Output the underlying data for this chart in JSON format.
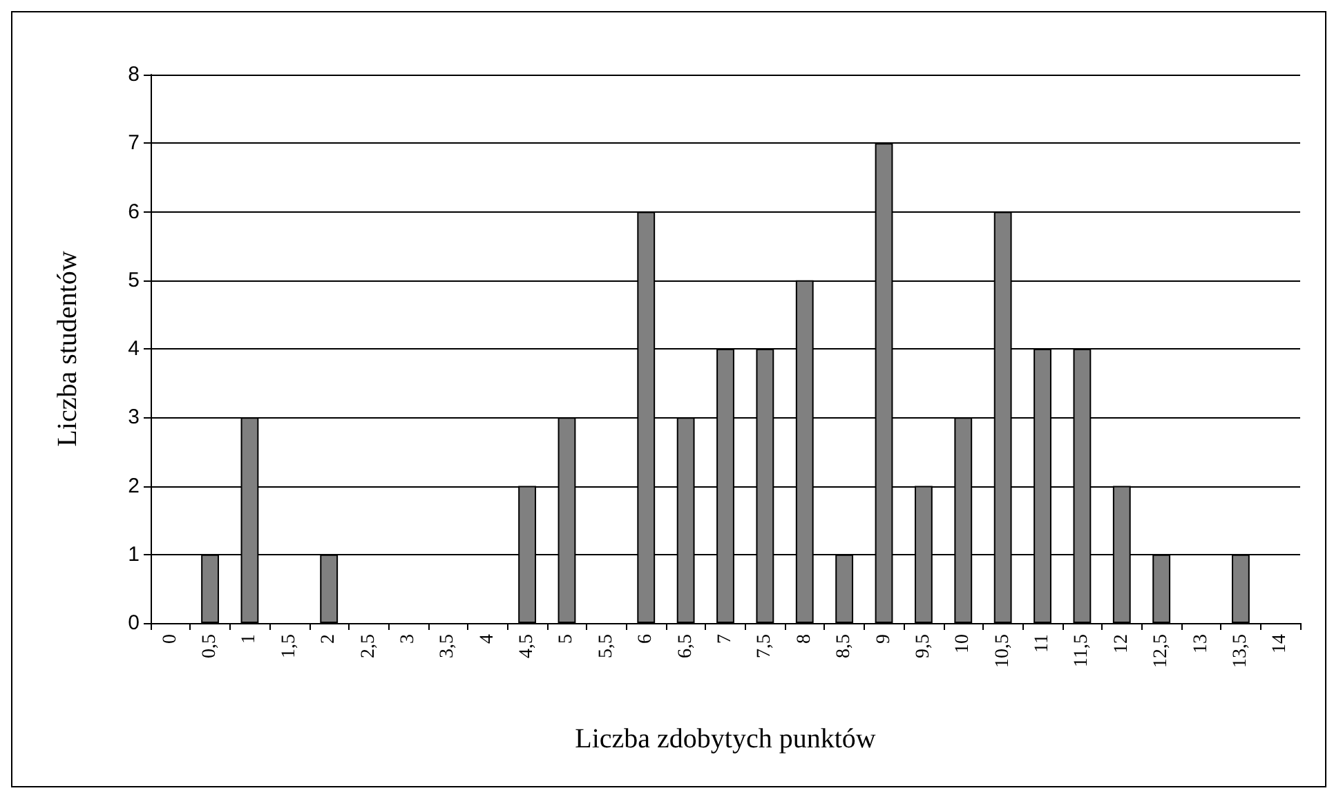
{
  "chart_data": {
    "type": "bar",
    "xlabel": "Liczba zdobytych punktów",
    "ylabel": "Liczba studentów",
    "categories": [
      "0",
      "0,5",
      "1",
      "1,5",
      "2",
      "2,5",
      "3",
      "3,5",
      "4",
      "4,5",
      "5",
      "5,5",
      "6",
      "6,5",
      "7",
      "7,5",
      "8",
      "8,5",
      "9",
      "9,5",
      "10",
      "10,5",
      "11",
      "11,5",
      "12",
      "12,5",
      "13",
      "13,5",
      "14"
    ],
    "values": [
      0,
      1,
      3,
      0,
      1,
      0,
      0,
      0,
      0,
      2,
      3,
      0,
      6,
      3,
      4,
      4,
      5,
      1,
      7,
      2,
      3,
      6,
      4,
      4,
      2,
      1,
      0,
      1,
      0
    ],
    "color": "#808080",
    "ylim": [
      0,
      8
    ],
    "yticks": [
      0,
      1,
      2,
      3,
      4,
      5,
      6,
      7,
      8
    ],
    "grid": "y"
  }
}
